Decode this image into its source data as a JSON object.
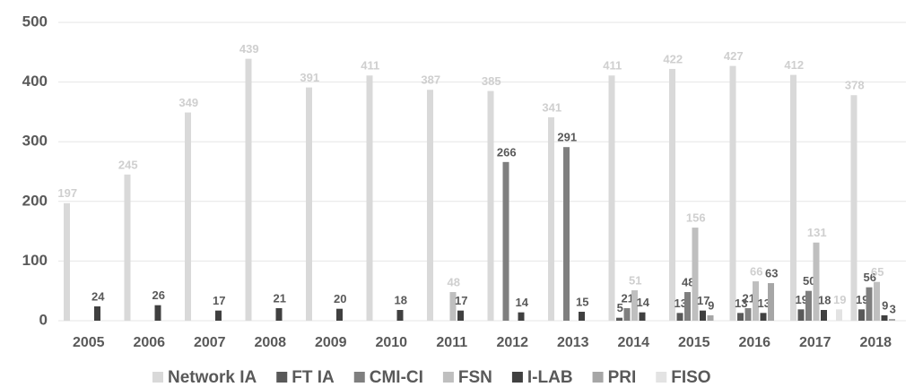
{
  "chart_data": {
    "type": "bar",
    "categories": [
      "2005",
      "2006",
      "2007",
      "2008",
      "2009",
      "2010",
      "2011",
      "2012",
      "2013",
      "2014",
      "2015",
      "2016",
      "2017",
      "2018"
    ],
    "series": [
      {
        "name": "Network IA",
        "color": "#d9d9d9",
        "values": [
          197,
          245,
          349,
          439,
          391,
          411,
          387,
          385,
          341,
          411,
          422,
          427,
          412,
          378
        ]
      },
      {
        "name": "FT IA",
        "color": "#595959",
        "values": [
          null,
          null,
          null,
          null,
          null,
          null,
          null,
          null,
          null,
          5,
          13,
          13,
          19,
          19
        ]
      },
      {
        "name": "CMI-CI",
        "color": "#7f7f7f",
        "values": [
          null,
          null,
          null,
          null,
          null,
          null,
          null,
          266,
          291,
          21,
          48,
          21,
          50,
          56
        ]
      },
      {
        "name": "FSN",
        "color": "#bfbfbf",
        "values": [
          null,
          null,
          null,
          null,
          null,
          null,
          48,
          null,
          null,
          51,
          156,
          66,
          131,
          65
        ]
      },
      {
        "name": "I-LAB",
        "color": "#404040",
        "values": [
          24,
          26,
          17,
          21,
          20,
          18,
          17,
          14,
          15,
          14,
          17,
          13,
          18,
          9
        ]
      },
      {
        "name": "PRI",
        "color": "#a6a6a6",
        "values": [
          null,
          null,
          null,
          null,
          null,
          null,
          null,
          null,
          null,
          null,
          9,
          63,
          null,
          3
        ]
      },
      {
        "name": "FISO",
        "color": "#e3e3e3",
        "values": [
          null,
          null,
          null,
          null,
          null,
          null,
          null,
          null,
          null,
          null,
          null,
          null,
          19,
          null
        ]
      }
    ],
    "ylim": [
      0,
      500
    ],
    "yticks": [
      0,
      100,
      200,
      300,
      400,
      500
    ],
    "grid": true
  }
}
